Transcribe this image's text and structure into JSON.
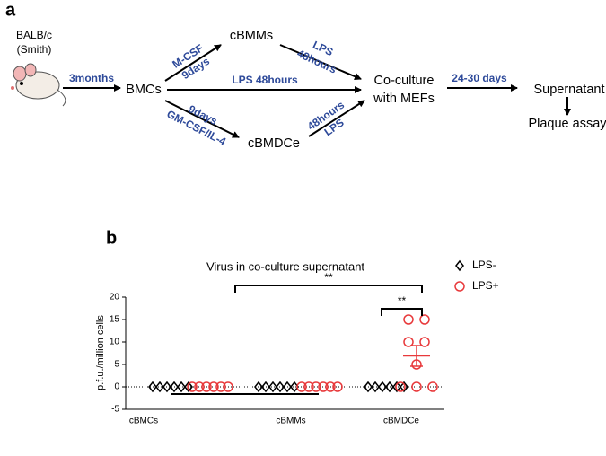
{
  "diagram": {
    "panel_label": "a",
    "source": [
      "BALB/c",
      "(Smith)"
    ],
    "bmcs": "BMCs",
    "cbmms": "cBMMs",
    "cbmdce": "cBMDCe",
    "coculture": [
      "Co-culture",
      "with MEFs"
    ],
    "supernatant": "Supernatant",
    "assay": "Plaque assay",
    "edges": {
      "mouse_to_bmcs": "3months",
      "bmcs_to_cbmms": [
        "M-CSF",
        "9days"
      ],
      "cbmms_to_coculture": [
        "LPS",
        "48hours"
      ],
      "bmcs_to_coculture": "LPS 48hours",
      "bmcs_to_cbmdce": [
        "9days",
        "GM-CSF/IL-4"
      ],
      "cbmdce_to_coculture": [
        "48hours",
        "LPS"
      ],
      "coculture_to_supernatant": "24-30 days"
    }
  },
  "chart_data": {
    "type": "dot",
    "panel_label": "b",
    "title": "Virus in co-culture supernatant",
    "y_label": "p.f.u./million cells",
    "categories": [
      "cBMCs",
      "cBMMs",
      "cBMDCe"
    ],
    "series": [
      {
        "name": "LPS-",
        "color": "#000000",
        "marker": "diamond",
        "values": [
          [
            0,
            0,
            0,
            0,
            0,
            0
          ],
          [
            0,
            0,
            0,
            0,
            0,
            0
          ],
          [
            0,
            0,
            0,
            0,
            0,
            0
          ]
        ]
      },
      {
        "name": "LPS+",
        "color": "#e8393b",
        "marker": "circle",
        "values": [
          [
            0,
            0,
            0,
            0,
            0,
            0
          ],
          [
            0,
            0,
            0,
            0,
            0,
            0
          ],
          [
            15,
            15,
            10,
            10,
            5,
            0,
            0,
            0
          ]
        ],
        "mean": [
          null,
          null,
          6.9
        ],
        "sem": [
          null,
          null,
          2.3
        ]
      }
    ],
    "ylim": [
      -5,
      20
    ],
    "yticks": [
      -5,
      0,
      5,
      10,
      15,
      20
    ],
    "legend": "top-right",
    "annotations": [
      {
        "label": "**"
      },
      {
        "label": "**"
      }
    ]
  }
}
